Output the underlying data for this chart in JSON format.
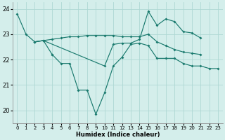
{
  "xlabel": "Humidex (Indice chaleur)",
  "background_color": "#d4eeeb",
  "grid_color": "#aed8d4",
  "line_color": "#1a7a6e",
  "xlim": [
    -0.5,
    23.5
  ],
  "ylim": [
    19.5,
    24.25
  ],
  "yticks": [
    20,
    21,
    22,
    23,
    24
  ],
  "xticks": [
    0,
    1,
    2,
    3,
    4,
    5,
    6,
    7,
    8,
    9,
    10,
    11,
    12,
    13,
    14,
    15,
    16,
    17,
    18,
    19,
    20,
    21,
    22,
    23
  ],
  "lines": [
    {
      "x": [
        0,
        1,
        2,
        3,
        4
      ],
      "y": [
        23.8,
        23.0,
        22.7,
        22.75,
        22.2
      ]
    },
    {
      "x": [
        4,
        5,
        6,
        7,
        8,
        9,
        10,
        11,
        12,
        13,
        14,
        15,
        16,
        17,
        18,
        19,
        20,
        21,
        22,
        23
      ],
      "y": [
        22.2,
        21.85,
        21.85,
        20.8,
        20.8,
        19.85,
        20.7,
        21.75,
        22.1,
        22.6,
        22.65,
        22.55,
        22.05,
        22.05,
        22.05,
        21.85,
        21.75,
        21.75,
        21.65,
        21.65
      ]
    },
    {
      "x": [
        2,
        3,
        4,
        5,
        6,
        7,
        8,
        9,
        10,
        11,
        12,
        13,
        14,
        15,
        16,
        17,
        18,
        19,
        20,
        21
      ],
      "y": [
        22.7,
        22.75,
        22.8,
        22.85,
        22.9,
        22.9,
        22.95,
        22.95,
        22.95,
        22.95,
        22.9,
        22.9,
        22.9,
        23.0,
        22.7,
        22.55,
        22.4,
        22.3,
        22.25,
        22.2
      ]
    },
    {
      "x": [
        2,
        3,
        10,
        11,
        12,
        13,
        14,
        15,
        16,
        17,
        18,
        19,
        20,
        21
      ],
      "y": [
        22.7,
        22.75,
        21.75,
        22.6,
        22.65,
        22.65,
        22.8,
        23.9,
        23.35,
        23.6,
        23.5,
        23.1,
        23.05,
        22.85
      ]
    }
  ],
  "figsize": [
    3.2,
    2.0
  ],
  "dpi": 100
}
